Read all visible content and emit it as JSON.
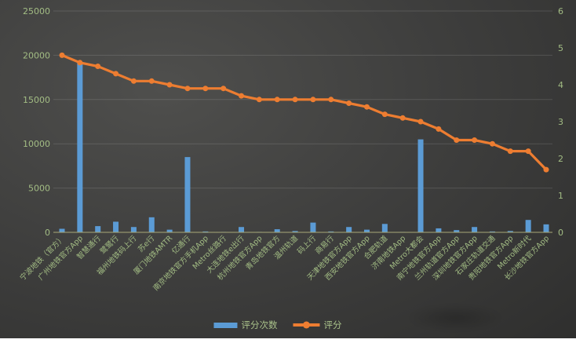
{
  "chart_data": {
    "type": "bar",
    "subtype": "bar-line-combo",
    "title": "",
    "categories": [
      "宁波地铁（官方）",
      "广州地铁官方App",
      "智慧通行",
      "鹭鹭行",
      "福州地铁码上行",
      "苏e行",
      "厦门地铁AMTR",
      "亿通行",
      "南京地铁官方手机App",
      "Metro丝路行",
      "大连地铁e出行",
      "杭州地铁官方App",
      "青岛地铁官方",
      "温州轨道",
      "码上行",
      "商易行",
      "天津地铁官方App",
      "西安地铁官方App",
      "合肥轨道",
      "济南地铁App",
      "Metro大都会",
      "南宁地铁官方App",
      "兰州轨道官方App",
      "深圳地铁官方App",
      "石家庄轨道交通",
      "贵阳地铁官方App",
      "Metro新时代",
      "长沙地铁官方App"
    ],
    "series": [
      {
        "name": "评分次数",
        "type": "bar",
        "axis": "left",
        "color": "#5b9bd5",
        "values": [
          400,
          19200,
          700,
          1200,
          600,
          1700,
          300,
          8500,
          100,
          50,
          600,
          50,
          350,
          150,
          1100,
          100,
          600,
          300,
          950,
          50,
          10500,
          450,
          250,
          600,
          100,
          150,
          1400,
          900
        ]
      },
      {
        "name": "评分",
        "type": "line",
        "axis": "right",
        "color": "#ed7d31",
        "values": [
          4.8,
          4.6,
          4.5,
          4.3,
          4.1,
          4.1,
          4.0,
          3.9,
          3.9,
          3.9,
          3.7,
          3.6,
          3.6,
          3.6,
          3.6,
          3.6,
          3.5,
          3.4,
          3.2,
          3.1,
          3.0,
          2.8,
          2.5,
          2.5,
          2.4,
          2.2,
          2.2,
          1.7
        ]
      }
    ],
    "left_axis": {
      "min": 0,
      "max": 25000,
      "step": 5000,
      "ticks": [
        "0",
        "5000",
        "10000",
        "15000",
        "20000",
        "25000"
      ]
    },
    "right_axis": {
      "min": 0,
      "max": 6,
      "step": 1,
      "ticks": [
        "0",
        "1",
        "2",
        "3",
        "4",
        "5",
        "6"
      ]
    },
    "grid": true,
    "legend_position": "bottom",
    "palette": {
      "tick_label_color": "#a3bd84",
      "category_label_color": "#a3bd84",
      "gridline_color": "rgba(255,255,255,0.13)",
      "axis_line_color": "#a8a878",
      "background_dark": "#3e3e3d"
    }
  }
}
